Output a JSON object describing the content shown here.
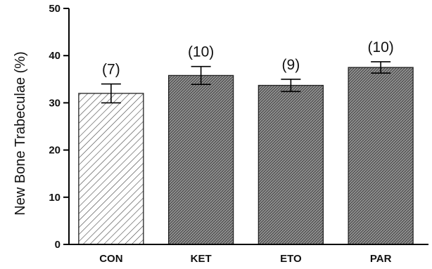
{
  "chart_data": {
    "type": "bar",
    "title": "",
    "xlabel": "",
    "ylabel": "New Bone Trabeculae (%)",
    "ylim": [
      0,
      50
    ],
    "yticks": [
      0,
      10,
      20,
      30,
      40,
      50
    ],
    "grid": false,
    "categories": [
      "CON",
      "KET",
      "ETO",
      "PAR"
    ],
    "values": [
      32,
      35.8,
      33.7,
      37.5
    ],
    "errors": [
      2,
      1.9,
      1.3,
      1.2
    ],
    "n_labels": [
      "(7)",
      "(10)",
      "(9)",
      "(10)"
    ],
    "patterns": [
      "diagonal-hatch",
      "dense-crosshatch",
      "dense-crosshatch",
      "dense-crosshatch"
    ]
  }
}
